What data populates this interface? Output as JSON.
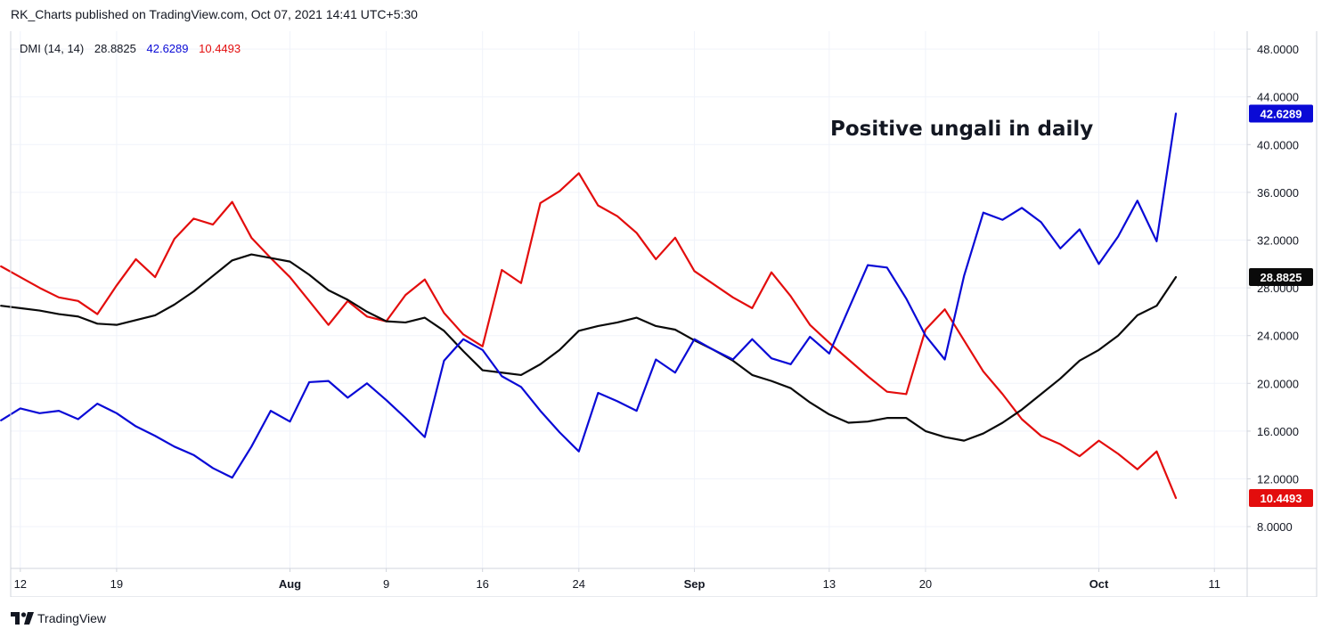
{
  "header": {
    "publisher": "RK_Charts published on TradingView.com, Oct 07, 2021 14:41 UTC+5:30"
  },
  "brand": {
    "name": "TradingView"
  },
  "colors": {
    "plus_di": "#0a0ad6",
    "minus_di": "#e30d0d",
    "adx": "#0a0a0a",
    "grid": "#f0f3fa",
    "axis": "#d1d4dc"
  },
  "chart_data": {
    "type": "line",
    "legend": {
      "name": "DMI (14, 14)",
      "adx": "28.8825",
      "plus_di": "42.6289",
      "minus_di": "10.4493"
    },
    "annotation": "Positive ungali in daily",
    "ylim": [
      4.5,
      49.5
    ],
    "y_ticks": [
      "8.0000",
      "12.0000",
      "16.0000",
      "20.0000",
      "24.0000",
      "28.0000",
      "32.0000",
      "36.0000",
      "40.0000",
      "44.0000",
      "48.0000"
    ],
    "x_ticks": [
      {
        "label": "12",
        "bar": 1,
        "bold": false
      },
      {
        "label": "19",
        "bar": 6,
        "bold": false
      },
      {
        "label": "Aug",
        "bar": 15,
        "bold": true
      },
      {
        "label": "9",
        "bar": 20,
        "bold": false
      },
      {
        "label": "16",
        "bar": 25,
        "bold": false
      },
      {
        "label": "24",
        "bar": 30,
        "bold": false
      },
      {
        "label": "Sep",
        "bar": 36,
        "bold": true
      },
      {
        "label": "13",
        "bar": 43,
        "bold": false
      },
      {
        "label": "20",
        "bar": 48,
        "bold": false
      },
      {
        "label": "Oct",
        "bar": 57,
        "bold": true
      },
      {
        "label": "11",
        "bar": 63,
        "bold": false
      }
    ],
    "x_range": [
      0.5,
      64.7
    ],
    "series": [
      {
        "key": "plus_di",
        "values": [
          16.9,
          17.9,
          17.5,
          17.7,
          17.0,
          18.3,
          17.5,
          16.4,
          15.6,
          14.7,
          14.0,
          12.9,
          12.1,
          14.7,
          17.7,
          16.8,
          20.1,
          20.2,
          18.8,
          20.0,
          18.6,
          17.1,
          15.5,
          21.9,
          23.7,
          22.8,
          20.6,
          19.7,
          17.7,
          15.9,
          14.3,
          19.2,
          18.5,
          17.7,
          22.0,
          20.9,
          23.7,
          22.8,
          22.0,
          23.7,
          22.1,
          21.6,
          23.9,
          22.5,
          26.2,
          29.9,
          29.7,
          27.1,
          24.0,
          22.0,
          29.0,
          34.3,
          33.7,
          34.7,
          33.5,
          31.3,
          32.9,
          30.0,
          32.3,
          35.3,
          31.9,
          42.6
        ]
      },
      {
        "key": "minus_di",
        "values": [
          29.8,
          28.9,
          28.0,
          27.2,
          26.9,
          25.8,
          28.2,
          30.4,
          28.9,
          32.1,
          33.8,
          33.3,
          35.2,
          32.2,
          30.5,
          28.9,
          26.9,
          24.9,
          26.9,
          25.6,
          25.2,
          27.4,
          28.7,
          25.9,
          24.1,
          23.1,
          29.5,
          28.4,
          35.1,
          36.1,
          37.6,
          34.9,
          34.0,
          32.6,
          30.4,
          32.2,
          29.4,
          28.3,
          27.2,
          26.3,
          29.3,
          27.3,
          24.9,
          23.4,
          22.0,
          20.6,
          19.3,
          19.1,
          24.5,
          26.2,
          23.6,
          21.0,
          19.1,
          17.0,
          15.6,
          14.9,
          13.9,
          15.2,
          14.1,
          12.8,
          14.3,
          10.4
        ]
      },
      {
        "key": "adx",
        "values": [
          26.5,
          26.3,
          26.1,
          25.8,
          25.6,
          25.0,
          24.9,
          25.3,
          25.7,
          26.6,
          27.7,
          29.0,
          30.3,
          30.8,
          30.5,
          30.2,
          29.1,
          27.8,
          27.0,
          26.0,
          25.2,
          25.1,
          25.5,
          24.4,
          22.7,
          21.1,
          20.9,
          20.7,
          21.6,
          22.8,
          24.4,
          24.8,
          25.1,
          25.5,
          24.8,
          24.5,
          23.6,
          22.8,
          21.9,
          20.7,
          20.2,
          19.6,
          18.4,
          17.4,
          16.7,
          16.8,
          17.1,
          17.1,
          16.0,
          15.5,
          15.2,
          15.8,
          16.7,
          17.8,
          19.1,
          20.4,
          21.9,
          22.8,
          24.0,
          25.7,
          26.5,
          28.9
        ]
      }
    ]
  }
}
